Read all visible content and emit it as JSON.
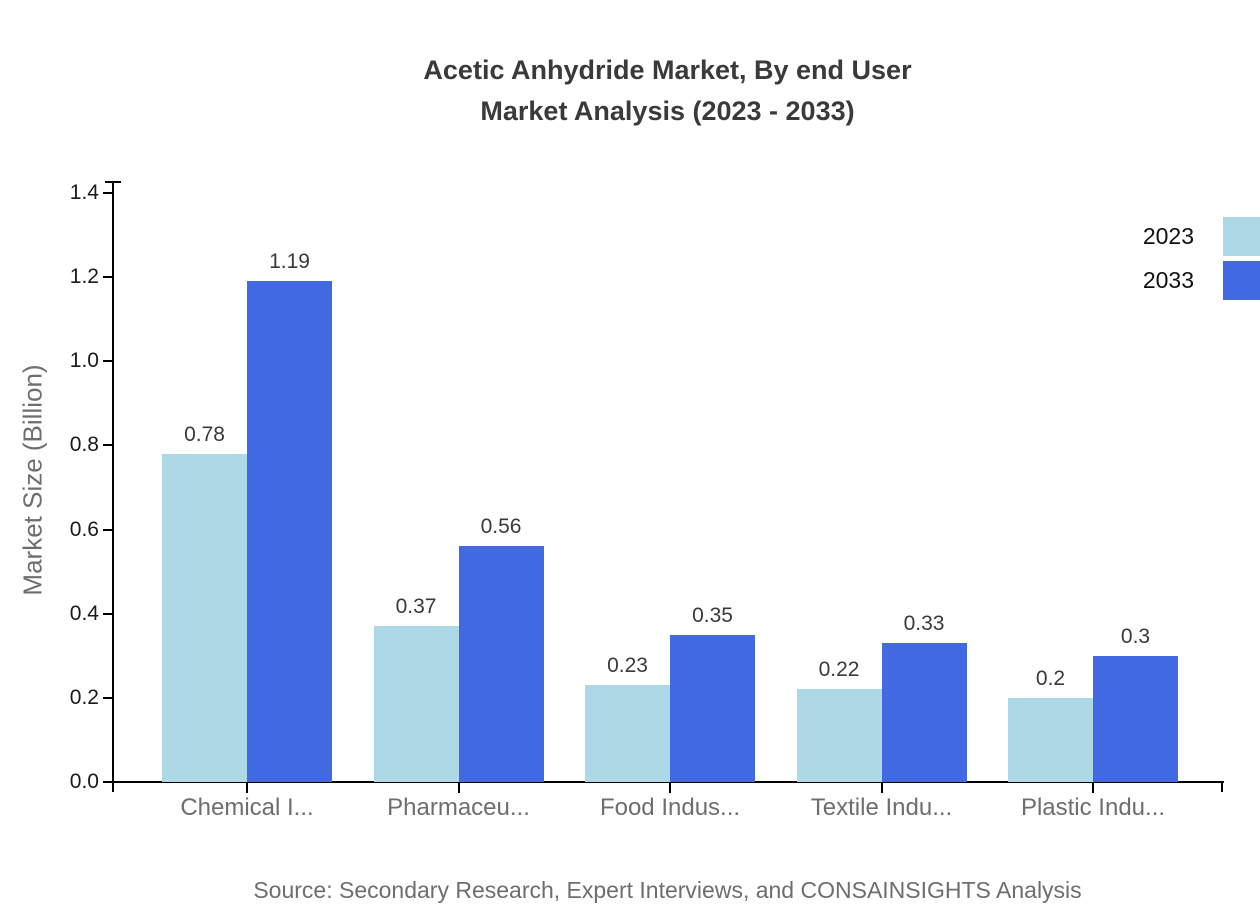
{
  "chart_data": {
    "type": "bar",
    "title_lines": [
      "Acetic Anhydride Market, By end User",
      "Market Analysis (2023 - 2033)"
    ],
    "title": "Acetic Anhydride Market, By end User Market Analysis (2023 - 2033)",
    "categories": [
      "Chemical I...",
      "Pharmaceu...",
      "Food Indus...",
      "Textile Indu...",
      "Plastic Indu..."
    ],
    "series": [
      {
        "name": "2023",
        "color": "#ADD8E6",
        "values": [
          0.78,
          0.37,
          0.23,
          0.22,
          0.2
        ],
        "labels": [
          "0.78",
          "0.37",
          "0.23",
          "0.22",
          "0.2"
        ]
      },
      {
        "name": "2033",
        "color": "#4169E1",
        "values": [
          1.19,
          0.56,
          0.35,
          0.33,
          0.3
        ],
        "labels": [
          "1.19",
          "0.56",
          "0.35",
          "0.33",
          "0.3"
        ]
      }
    ],
    "xlabel": "",
    "ylabel": "Market Size (Billion)",
    "ylim": [
      0,
      1.4
    ],
    "ytick_labels": [
      "0.0",
      "0.2",
      "0.4",
      "0.6",
      "0.8",
      "1.0",
      "1.2",
      "1.4"
    ],
    "grid": false,
    "legend_position": "top-right",
    "source": "Source: Secondary Research, Expert Interviews, and CONSAINSIGHTS Analysis",
    "colors": {
      "series_2023": "#ADD8E6",
      "series_2033": "#4169E1",
      "title_text": "#3a3a3a",
      "value_label_text": "#3a3a3a",
      "tick_label_text": "#1a1a1a",
      "category_label_text": "#6e6e6e",
      "muted_text": "#6e6e6e",
      "axis": "#000000",
      "background": "#ffffff"
    }
  }
}
